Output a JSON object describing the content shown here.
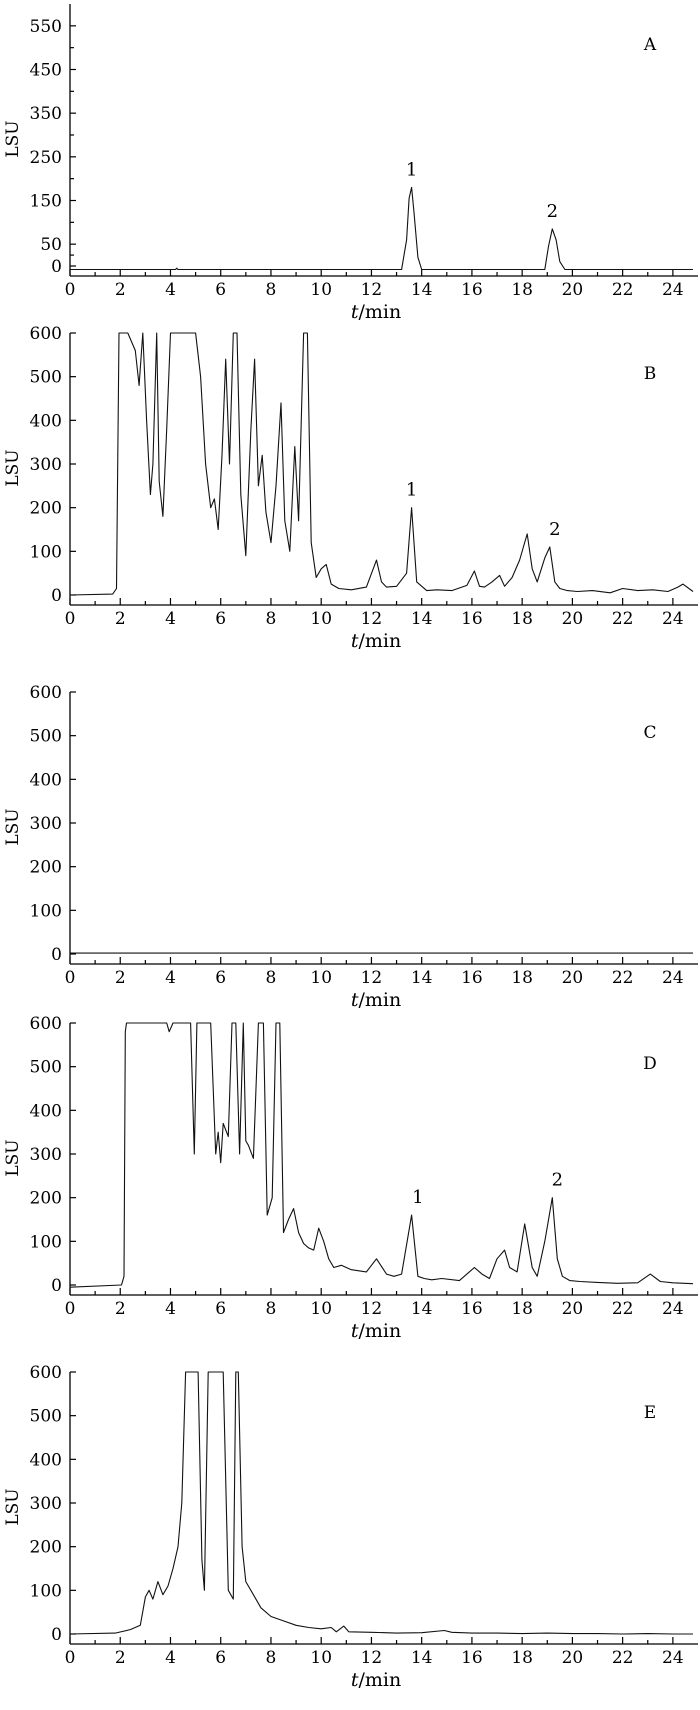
{
  "chart_data": [
    {
      "type": "line",
      "panel_label": "A",
      "ylabel": "LSU",
      "xlabel": "t/min",
      "xlabel_italic": "t",
      "xlabel_unit": "/min",
      "xlim": [
        0,
        25
      ],
      "ylim": [
        0,
        600
      ],
      "xticks": [
        0,
        2,
        4,
        6,
        8,
        10,
        12,
        14,
        16,
        18,
        20,
        22,
        24
      ],
      "yticks": [
        0,
        50,
        150,
        250,
        350,
        450,
        550
      ],
      "x": [
        0,
        4.2,
        4.25,
        4.3,
        13.2,
        13.4,
        13.5,
        13.6,
        13.7,
        13.85,
        14,
        18.9,
        19.05,
        19.2,
        19.35,
        19.5,
        19.7,
        24.8
      ],
      "y": [
        -8,
        -8,
        -5,
        -8,
        -8,
        60,
        155,
        180,
        120,
        20,
        -8,
        -8,
        45,
        85,
        60,
        10,
        -8,
        -8
      ],
      "annotations": [
        {
          "text": "1",
          "x": 13.6,
          "y": 180
        },
        {
          "text": "2",
          "x": 19.2,
          "y": 85
        }
      ]
    },
    {
      "type": "line",
      "panel_label": "B",
      "ylabel": "LSU",
      "xlabel": "t/min",
      "xlabel_italic": "t",
      "xlabel_unit": "/min",
      "xlim": [
        0,
        25
      ],
      "ylim": [
        0,
        600
      ],
      "xticks": [
        0,
        2,
        4,
        6,
        8,
        10,
        12,
        14,
        16,
        18,
        20,
        22,
        24
      ],
      "yticks": [
        0,
        100,
        200,
        300,
        400,
        500,
        600
      ],
      "x": [
        0,
        1.7,
        1.85,
        1.95,
        2.1,
        2.3,
        2.6,
        2.75,
        2.9,
        3.05,
        3.2,
        3.3,
        3.45,
        3.55,
        3.7,
        3.85,
        4.0,
        4.2,
        4.4,
        4.6,
        4.8,
        5.0,
        5.2,
        5.4,
        5.6,
        5.75,
        5.9,
        6.05,
        6.2,
        6.35,
        6.5,
        6.65,
        6.8,
        7.0,
        7.2,
        7.35,
        7.5,
        7.65,
        7.8,
        8.0,
        8.2,
        8.4,
        8.55,
        8.75,
        8.95,
        9.1,
        9.3,
        9.45,
        9.6,
        9.8,
        10.0,
        10.2,
        10.4,
        10.7,
        11.2,
        11.8,
        12.2,
        12.4,
        12.6,
        13.0,
        13.4,
        13.6,
        13.8,
        14.2,
        14.6,
        15.2,
        15.8,
        16.1,
        16.3,
        16.5,
        16.8,
        17.1,
        17.3,
        17.6,
        17.9,
        18.2,
        18.4,
        18.6,
        18.9,
        19.1,
        19.3,
        19.5,
        19.8,
        20.2,
        20.8,
        21.5,
        22.0,
        22.6,
        23.2,
        23.8,
        24.2,
        24.4,
        24.8
      ],
      "y": [
        0,
        2,
        15,
        600,
        600,
        600,
        560,
        480,
        600,
        400,
        230,
        300,
        600,
        260,
        180,
        380,
        600,
        600,
        600,
        600,
        600,
        600,
        500,
        300,
        200,
        220,
        150,
        320,
        540,
        300,
        600,
        600,
        230,
        90,
        380,
        540,
        250,
        320,
        190,
        120,
        250,
        440,
        170,
        100,
        340,
        170,
        600,
        600,
        120,
        40,
        60,
        70,
        25,
        15,
        12,
        18,
        80,
        30,
        18,
        20,
        50,
        200,
        30,
        10,
        12,
        10,
        22,
        55,
        20,
        18,
        30,
        45,
        20,
        40,
        80,
        140,
        60,
        30,
        85,
        110,
        30,
        15,
        10,
        8,
        10,
        5,
        15,
        10,
        12,
        8,
        18,
        25,
        8
      ],
      "annotations": [
        {
          "text": "1",
          "x": 13.6,
          "y": 200
        },
        {
          "text": "2",
          "x": 19.3,
          "y": 110
        }
      ]
    },
    {
      "type": "line",
      "panel_label": "C",
      "ylabel": "LSU",
      "xlabel": "t/min",
      "xlabel_italic": "t",
      "xlabel_unit": "/min",
      "xlim": [
        0,
        25
      ],
      "ylim": [
        0,
        600
      ],
      "xticks": [
        0,
        2,
        4,
        6,
        8,
        10,
        12,
        14,
        16,
        18,
        20,
        22,
        24
      ],
      "yticks": [
        0,
        100,
        200,
        300,
        400,
        500,
        600
      ],
      "x": [
        0,
        24.8
      ],
      "y": [
        2,
        2
      ],
      "annotations": []
    },
    {
      "type": "line",
      "panel_label": "D",
      "ylabel": "LSU",
      "xlabel": "t/min",
      "xlabel_italic": "t",
      "xlabel_unit": "/min",
      "xlim": [
        0,
        25
      ],
      "ylim": [
        0,
        600
      ],
      "xticks": [
        0,
        2,
        4,
        6,
        8,
        10,
        12,
        14,
        16,
        18,
        20,
        22,
        24
      ],
      "yticks": [
        0,
        100,
        200,
        300,
        400,
        500,
        600
      ],
      "x": [
        0,
        2.05,
        2.15,
        2.2,
        2.25,
        2.3,
        3.5,
        3.85,
        3.95,
        4.1,
        4.25,
        4.4,
        4.6,
        4.8,
        4.95,
        5.05,
        5.2,
        5.6,
        5.8,
        5.9,
        6.0,
        6.1,
        6.3,
        6.45,
        6.6,
        6.75,
        6.9,
        7.0,
        7.1,
        7.3,
        7.5,
        7.7,
        7.85,
        8.05,
        8.2,
        8.35,
        8.5,
        8.7,
        8.9,
        9.1,
        9.3,
        9.5,
        9.7,
        9.9,
        10.1,
        10.3,
        10.5,
        10.8,
        11.2,
        11.8,
        12.2,
        12.6,
        12.9,
        13.2,
        13.6,
        13.85,
        14.1,
        14.4,
        14.8,
        15.5,
        16.1,
        16.4,
        16.7,
        17.0,
        17.3,
        17.5,
        17.8,
        18.1,
        18.4,
        18.6,
        18.9,
        19.2,
        19.4,
        19.6,
        19.9,
        20.3,
        21.0,
        21.8,
        22.6,
        23.1,
        23.5,
        24.0,
        24.8
      ],
      "y": [
        -5,
        0,
        20,
        580,
        600,
        600,
        600,
        600,
        580,
        600,
        600,
        600,
        600,
        600,
        300,
        600,
        600,
        600,
        300,
        350,
        280,
        370,
        340,
        600,
        600,
        300,
        600,
        330,
        320,
        290,
        600,
        600,
        160,
        200,
        600,
        600,
        120,
        150,
        175,
        120,
        95,
        85,
        80,
        130,
        100,
        60,
        40,
        45,
        35,
        30,
        60,
        25,
        20,
        25,
        160,
        20,
        15,
        12,
        15,
        10,
        40,
        25,
        15,
        60,
        80,
        40,
        30,
        140,
        40,
        20,
        100,
        200,
        60,
        20,
        10,
        8,
        6,
        4,
        5,
        25,
        8,
        5,
        3
      ],
      "annotations": [
        {
          "text": "1",
          "x": 13.85,
          "y": 160
        },
        {
          "text": "2",
          "x": 19.4,
          "y": 200
        }
      ]
    },
    {
      "type": "line",
      "panel_label": "E",
      "ylabel": "LSU",
      "xlabel": "t/min",
      "xlabel_italic": "t",
      "xlabel_unit": "/min",
      "xlim": [
        0,
        25
      ],
      "ylim": [
        0,
        600
      ],
      "xticks": [
        0,
        2,
        4,
        6,
        8,
        10,
        12,
        14,
        16,
        18,
        20,
        22,
        24
      ],
      "yticks": [
        0,
        100,
        200,
        300,
        400,
        500,
        600
      ],
      "x": [
        0,
        1.8,
        2.4,
        2.8,
        3.0,
        3.15,
        3.3,
        3.5,
        3.7,
        3.9,
        4.1,
        4.3,
        4.45,
        4.6,
        4.8,
        5.0,
        5.1,
        5.25,
        5.35,
        5.5,
        5.7,
        5.9,
        6.1,
        6.3,
        6.5,
        6.6,
        6.7,
        6.85,
        7.0,
        7.3,
        7.6,
        8.0,
        8.5,
        9.0,
        9.5,
        10.0,
        10.4,
        10.6,
        10.9,
        11.1,
        12.0,
        13.0,
        14.0,
        14.9,
        15.2,
        16.0,
        17.0,
        18.0,
        19.0,
        20.0,
        21.0,
        22.0,
        23.0,
        24.0,
        24.8
      ],
      "y": [
        0,
        2,
        10,
        20,
        85,
        100,
        80,
        120,
        90,
        110,
        150,
        200,
        300,
        600,
        600,
        600,
        600,
        170,
        100,
        600,
        600,
        600,
        600,
        100,
        80,
        600,
        600,
        200,
        120,
        90,
        60,
        40,
        30,
        20,
        15,
        12,
        15,
        5,
        18,
        5,
        4,
        2,
        3,
        8,
        4,
        2,
        2,
        1,
        2,
        1,
        1,
        0,
        1,
        0,
        0
      ],
      "annotations": []
    }
  ]
}
